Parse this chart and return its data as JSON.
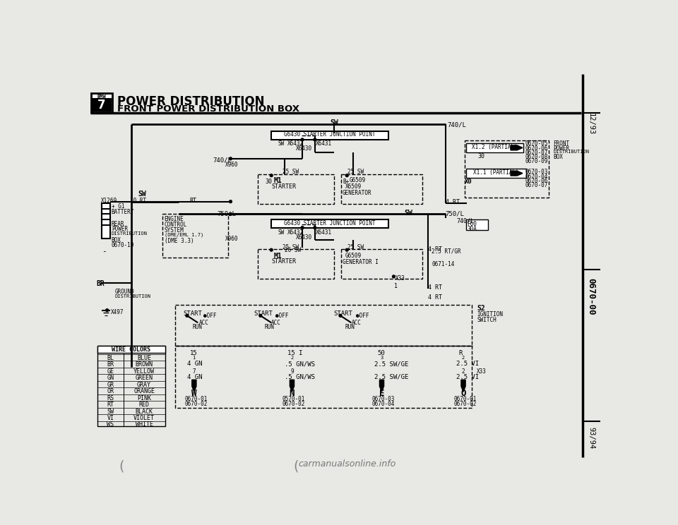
{
  "title1": "POWER DISTRIBUTION",
  "title2": "FRONT POWER DISTRIBUTION BOX",
  "page_ref_top": "12/93",
  "page_ref_mid": "0670-00",
  "page_ref_bot": "93/94",
  "bg_color": "#e8e8e4",
  "wire_colors": [
    [
      "BL",
      "BLUE"
    ],
    [
      "BR",
      "BROWN"
    ],
    [
      "GE",
      "YELLOW"
    ],
    [
      "GN",
      "GREEN"
    ],
    [
      "GR",
      "GRAY"
    ],
    [
      "OR",
      "ORANGE"
    ],
    [
      "RS",
      "PINK"
    ],
    [
      "RT",
      "RED"
    ],
    [
      "SW",
      "BLACK"
    ],
    [
      "VI",
      "VIOLET"
    ],
    [
      "WS",
      "WHITE"
    ]
  ]
}
